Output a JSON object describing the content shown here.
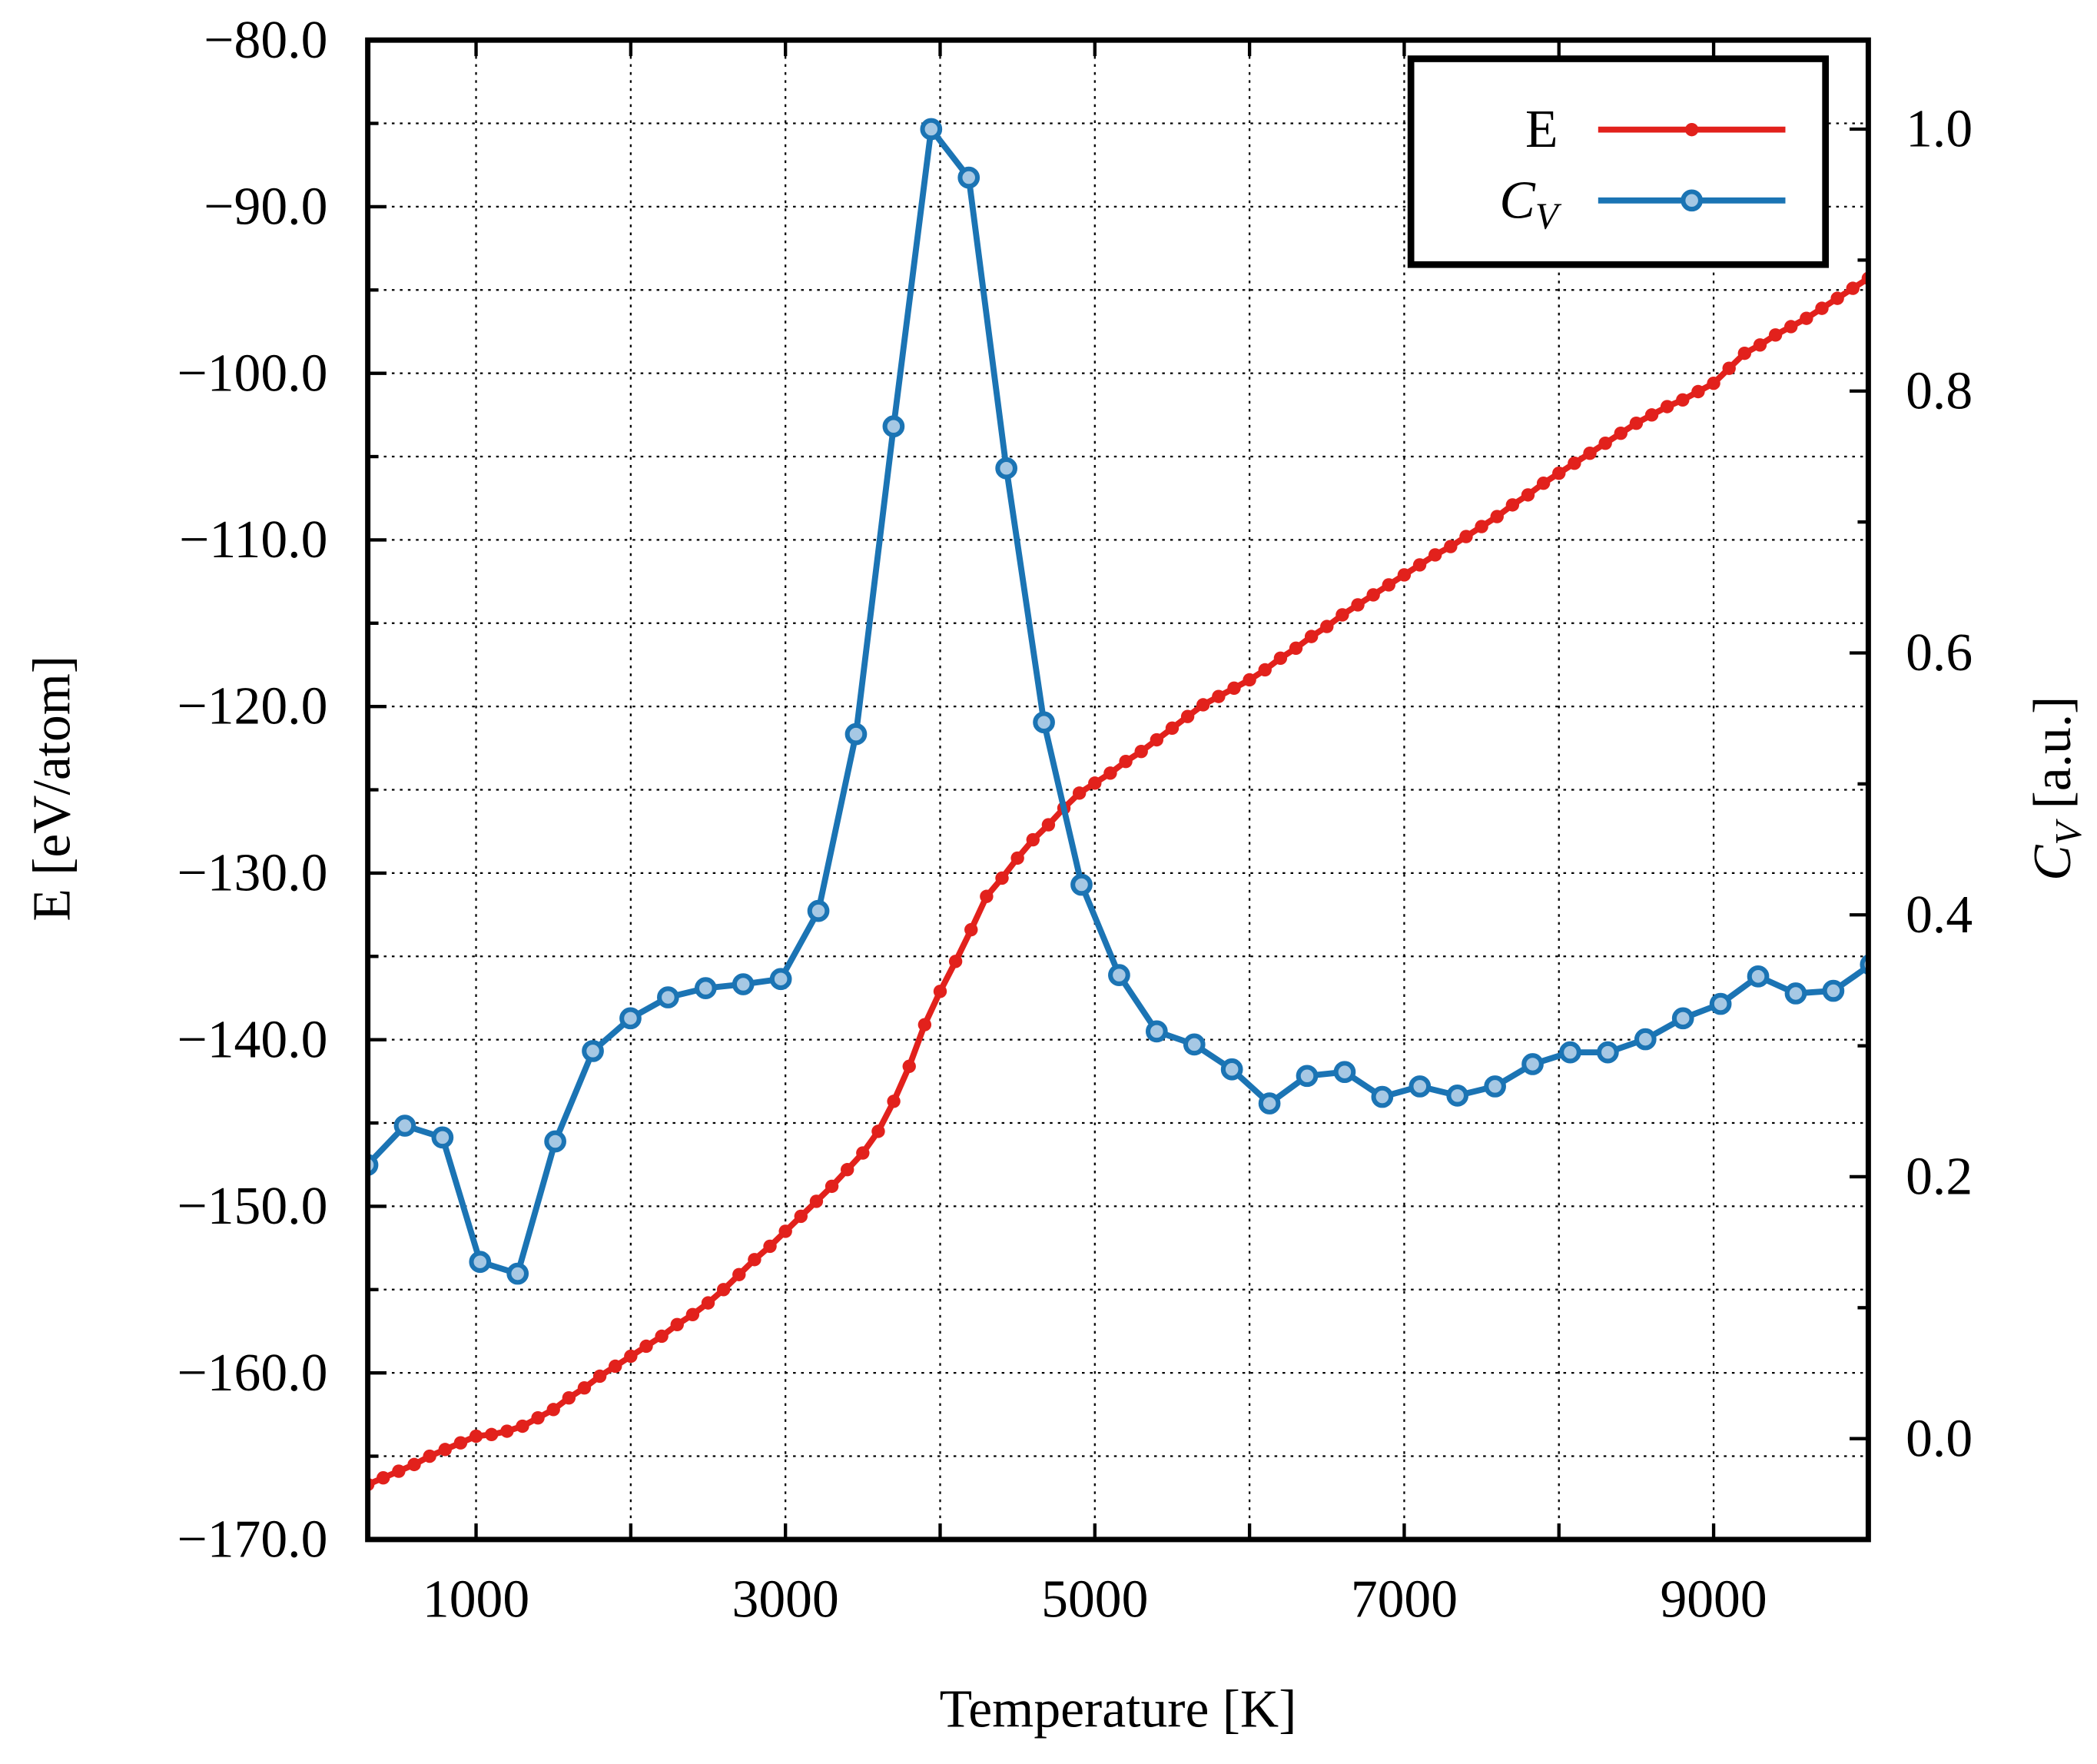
{
  "chart_data": {
    "type": "line",
    "xlabel": "Temperature [K]",
    "ylabel": "E [eV/atom]",
    "y2label": "C_V [a.u.]",
    "xlim": [
      300,
      10000
    ],
    "ylim": [
      -170,
      -80
    ],
    "y2lim": [
      -0.077,
      1.068
    ],
    "xticks": [
      1000,
      3000,
      5000,
      7000,
      9000
    ],
    "xminorticks": [
      2000,
      4000,
      6000,
      8000
    ],
    "yticks": [
      {
        "value": -170,
        "label": "−170.0"
      },
      {
        "value": -160,
        "label": "−160.0"
      },
      {
        "value": -150,
        "label": "−150.0"
      },
      {
        "value": -140,
        "label": "−140.0"
      },
      {
        "value": -130,
        "label": "−130.0"
      },
      {
        "value": -120,
        "label": "−120.0"
      },
      {
        "value": -110,
        "label": "−110.0"
      },
      {
        "value": -100,
        "label": "−100.0"
      },
      {
        "value": -90,
        "label": "−90.0"
      },
      {
        "value": -80,
        "label": "−80.0"
      }
    ],
    "yminorticks": [
      -165,
      -155,
      -145,
      -135,
      -125,
      -115,
      -105,
      -95,
      -85
    ],
    "y2ticks": [
      {
        "value": 0,
        "label": "0.0"
      },
      0.2,
      0.4,
      0.6,
      0.8,
      {
        "value": 1,
        "label": "1.0"
      }
    ],
    "y2minorticks": [
      0.1,
      0.3,
      0.5,
      0.7,
      0.9
    ],
    "grid": true,
    "legend": "upper right",
    "series": [
      {
        "name": "E",
        "color": "#e2211c",
        "marker": "dot",
        "x": [
          300,
          400,
          500,
          600,
          700,
          800,
          900,
          1000,
          1100,
          1200,
          1300,
          1400,
          1500,
          1600,
          1700,
          1800,
          1900,
          2000,
          2100,
          2200,
          2300,
          2400,
          2500,
          2600,
          2700,
          2800,
          2900,
          3000,
          3100,
          3200,
          3300,
          3400,
          3500,
          3600,
          3700,
          3800,
          3900,
          4000,
          4100,
          4200,
          4300,
          4400,
          4500,
          4600,
          4700,
          4800,
          4900,
          5000,
          5100,
          5200,
          5300,
          5400,
          5500,
          5600,
          5700,
          5800,
          5900,
          6000,
          6100,
          6200,
          6300,
          6400,
          6500,
          6600,
          6700,
          6800,
          6900,
          7000,
          7100,
          7200,
          7300,
          7400,
          7500,
          7600,
          7700,
          7800,
          7900,
          8000,
          8100,
          8200,
          8300,
          8400,
          8500,
          8600,
          8700,
          8800,
          8900,
          9000,
          9100,
          9200,
          9300,
          9400,
          9500,
          9600,
          9700,
          9800,
          9900,
          10000
        ],
        "values": [
          -166.7,
          -166.3,
          -165.9,
          -165.5,
          -165.0,
          -164.6,
          -164.2,
          -163.8,
          -163.7,
          -163.5,
          -163.2,
          -162.7,
          -162.2,
          -161.5,
          -160.9,
          -160.2,
          -159.6,
          -159.0,
          -158.4,
          -157.8,
          -157.1,
          -156.5,
          -155.8,
          -155.0,
          -154.1,
          -153.2,
          -152.4,
          -151.5,
          -150.6,
          -149.7,
          -148.8,
          -147.8,
          -146.8,
          -145.5,
          -143.7,
          -141.6,
          -139.1,
          -137.1,
          -135.3,
          -133.4,
          -131.4,
          -130.3,
          -129.1,
          -128.0,
          -127.1,
          -126.1,
          -125.2,
          -124.6,
          -124.0,
          -123.3,
          -122.7,
          -122.0,
          -121.3,
          -120.6,
          -119.9,
          -119.4,
          -118.9,
          -118.4,
          -117.8,
          -117.1,
          -116.5,
          -115.8,
          -115.2,
          -114.5,
          -113.9,
          -113.3,
          -112.7,
          -112.1,
          -111.5,
          -110.9,
          -110.4,
          -109.8,
          -109.2,
          -108.6,
          -107.9,
          -107.3,
          -106.6,
          -106.0,
          -105.4,
          -104.8,
          -104.2,
          -103.6,
          -103.0,
          -102.5,
          -102.0,
          -101.6,
          -101.1,
          -100.6,
          -99.7,
          -98.8,
          -98.3,
          -97.7,
          -97.2,
          -96.7,
          -96.1,
          -95.5,
          -94.9,
          -94.3
        ]
      },
      {
        "name": "C_V",
        "color": "#1b74b4",
        "marker": "ring",
        "axis": "y2",
        "x": [
          297,
          540,
          783,
          1026,
          1269,
          1512,
          1755,
          1998,
          2241,
          2484,
          2727,
          2970,
          3213,
          3456,
          3699,
          3942,
          4185,
          4428,
          4671,
          4914,
          5157,
          5400,
          5643,
          5886,
          6129,
          6372,
          6615,
          6858,
          7101,
          7344,
          7587,
          7830,
          8073,
          8316,
          8559,
          8802,
          9045,
          9288,
          9531,
          9774,
          10017
        ],
        "values": [
          0.209,
          0.239,
          0.23,
          0.135,
          0.126,
          0.227,
          0.296,
          0.321,
          0.337,
          0.344,
          0.347,
          0.351,
          0.403,
          0.538,
          0.773,
          1.0,
          0.963,
          0.741,
          0.547,
          0.423,
          0.354,
          0.311,
          0.301,
          0.282,
          0.256,
          0.277,
          0.28,
          0.261,
          0.269,
          0.262,
          0.269,
          0.286,
          0.295,
          0.295,
          0.305,
          0.321,
          0.332,
          0.353,
          0.34,
          0.342,
          0.362
        ]
      }
    ]
  }
}
